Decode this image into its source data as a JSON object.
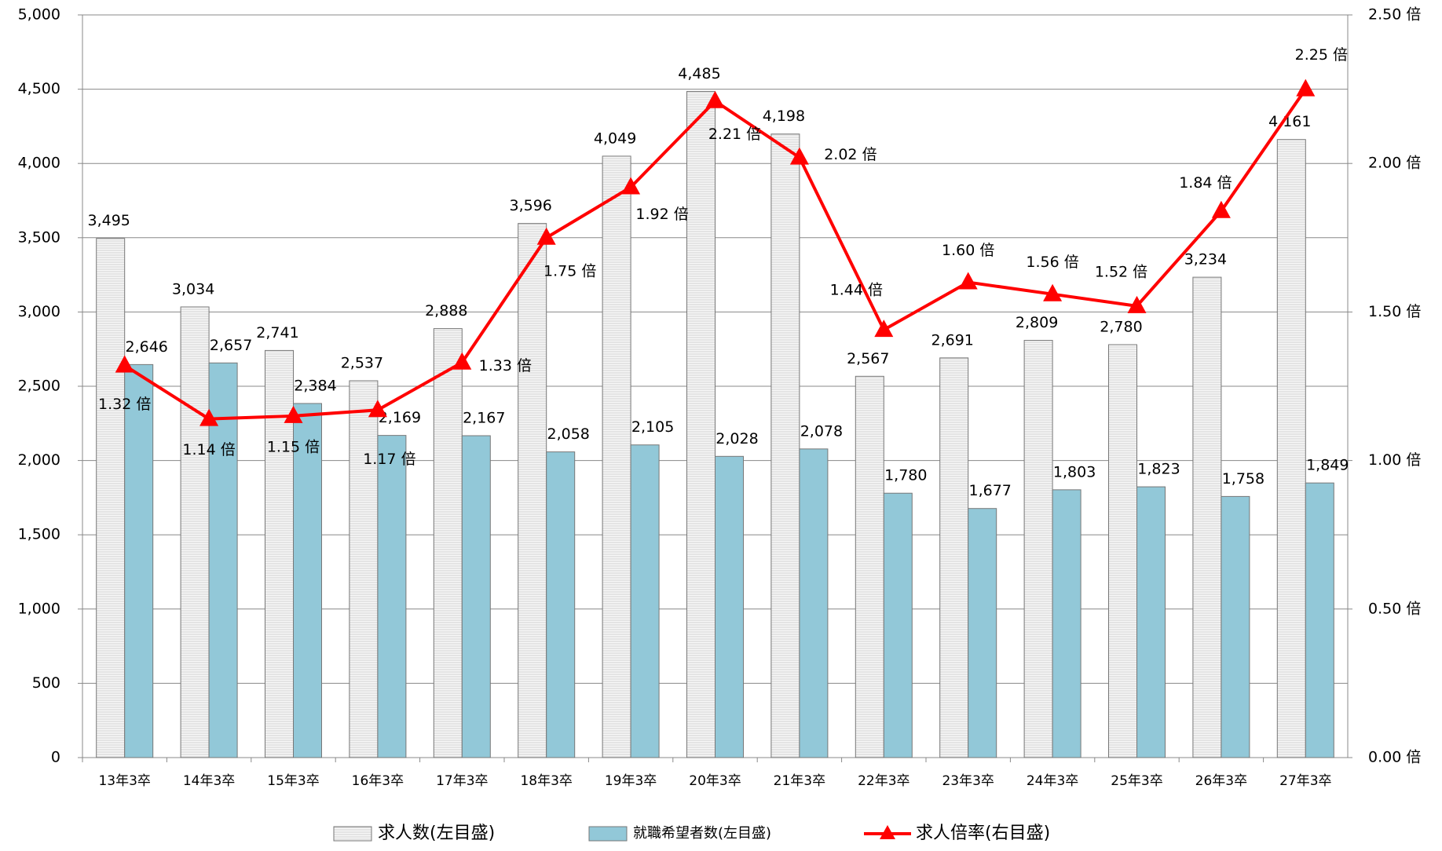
{
  "chart_data": {
    "type": "bar-line",
    "categories": [
      "13年3卒",
      "14年3卒",
      "15年3卒",
      "16年3卒",
      "17年3卒",
      "18年3卒",
      "19年3卒",
      "20年3卒",
      "21年3卒",
      "22年3卒",
      "23年3卒",
      "24年3卒",
      "25年3卒",
      "26年3卒",
      "27年3卒"
    ],
    "series": [
      {
        "name": "求人数(左目盛)",
        "type": "bar",
        "color": "#f2f2f2",
        "values": [
          3495,
          3034,
          2741,
          2537,
          2888,
          3596,
          4049,
          4485,
          4198,
          2567,
          2691,
          2809,
          2780,
          3234,
          4161
        ],
        "value_labels": [
          "3,495",
          "3,034",
          "2,741",
          "2,537",
          "2,888",
          "3,596",
          "4,049",
          "4,485",
          "4,198",
          "2,567",
          "2,691",
          "2,809",
          "2,780",
          "3,234",
          "4,161"
        ]
      },
      {
        "name": "就職希望者数(左目盛)",
        "type": "bar",
        "color": "#92c8d8",
        "values": [
          2646,
          2657,
          2384,
          2169,
          2167,
          2058,
          2105,
          2028,
          2078,
          1780,
          1677,
          1803,
          1823,
          1758,
          1849
        ],
        "value_labels": [
          "2,646",
          "2,657",
          "2,384",
          "2,169",
          "2,167",
          "2,058",
          "2,105",
          "2,028",
          "2,078",
          "1,780",
          "1,677",
          "1,803",
          "1,823",
          "1,758",
          "1,849"
        ]
      },
      {
        "name": "求人倍率(右目盛)",
        "type": "line",
        "axis": "y2",
        "color": "#ff0000",
        "values": [
          1.32,
          1.14,
          1.15,
          1.17,
          1.33,
          1.75,
          1.92,
          2.21,
          2.02,
          1.44,
          1.6,
          1.56,
          1.52,
          1.84,
          2.25
        ],
        "value_labels": [
          "1.32 倍",
          "1.14 倍",
          "1.15 倍",
          "1.17 倍",
          "1.33 倍",
          "1.75 倍",
          "1.92 倍",
          "2.21 倍",
          "2.02 倍",
          "1.44 倍",
          "1.60 倍",
          "1.56 倍",
          "1.52 倍",
          "1.84 倍",
          "2.25 倍"
        ]
      }
    ],
    "ylim": [
      0,
      5000
    ],
    "yticks": [
      {
        "value": 0,
        "label": "0"
      },
      {
        "value": 500,
        "label": "500"
      },
      {
        "value": 1000,
        "label": "1,000"
      },
      {
        "value": 1500,
        "label": "1,500"
      },
      {
        "value": 2000,
        "label": "2,000"
      },
      {
        "value": 2500,
        "label": "2,500"
      },
      {
        "value": 3000,
        "label": "3,000"
      },
      {
        "value": 3500,
        "label": "3,500"
      },
      {
        "value": 4000,
        "label": "4,000"
      },
      {
        "value": 4500,
        "label": "4,500"
      },
      {
        "value": 5000,
        "label": "5,000"
      }
    ],
    "y2lim": [
      0,
      2.5
    ],
    "y2ticks": [
      {
        "value": 0,
        "label": "0.00 倍"
      },
      {
        "value": 0.5,
        "label": "0.50 倍"
      },
      {
        "value": 1,
        "label": "1.00 倍"
      },
      {
        "value": 1.5,
        "label": "1.50 倍"
      },
      {
        "value": 2,
        "label": "2.00 倍"
      },
      {
        "value": 2.5,
        "label": "2.50 倍"
      }
    ],
    "grid": true
  }
}
